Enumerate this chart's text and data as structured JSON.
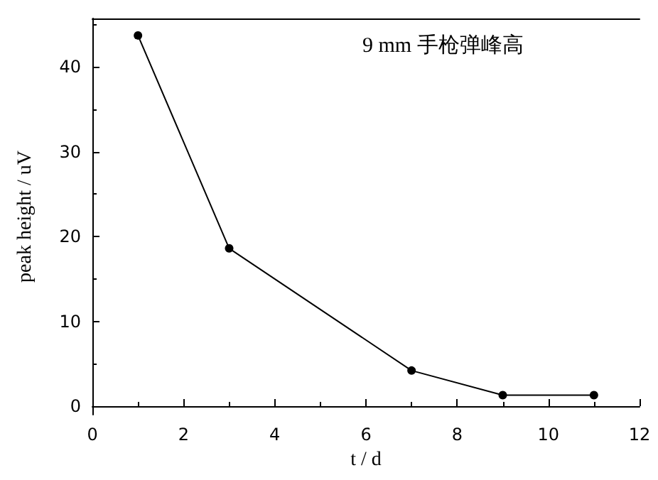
{
  "chart_data": {
    "type": "line",
    "title": "9 mm 手枪弹峰高",
    "xlabel": "t / d",
    "ylabel": "peak height / uV",
    "x": [
      1,
      3,
      7,
      9,
      11
    ],
    "series": [
      {
        "color": "#000000",
        "values": [
          43.7,
          18.6,
          4.2,
          1.3,
          1.3
        ]
      }
    ],
    "xlim": [
      0,
      12
    ],
    "xticks": [
      0,
      2,
      4,
      6,
      8,
      10,
      12
    ],
    "ylim": [
      -1,
      45.7
    ],
    "yticks": [
      0,
      10,
      20,
      30,
      40
    ],
    "marker": "circle",
    "line_style": "solid"
  }
}
